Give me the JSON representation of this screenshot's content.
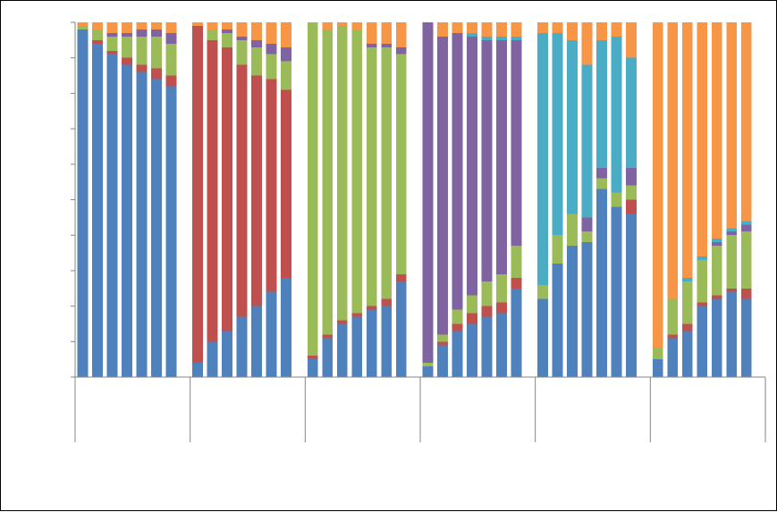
{
  "chart_data": {
    "type": "bar",
    "stacked": true,
    "normalized": true,
    "ylim": [
      0,
      1
    ],
    "grid": false,
    "gridlines": 10,
    "groups": 6,
    "bars_per_group": 7,
    "series_colors": [
      "#4F81BD",
      "#C0504D",
      "#9BBB59",
      "#8064A2",
      "#4BACC6",
      "#F79646"
    ],
    "series": [
      {
        "values": [
          0.98,
          0.94,
          0.91,
          0.88,
          0.86,
          0.84,
          0.82,
          0.04,
          0.1,
          0.13,
          0.17,
          0.2,
          0.24,
          0.28,
          0.05,
          0.11,
          0.15,
          0.17,
          0.19,
          0.2,
          0.27,
          0.03,
          0.09,
          0.13,
          0.15,
          0.17,
          0.18,
          0.25,
          0.22,
          0.32,
          0.37,
          0.38,
          0.53,
          0.48,
          0.46,
          0.05,
          0.11,
          0.13,
          0.2,
          0.22,
          0.24,
          0.22
        ]
      },
      {
        "values": [
          0.0,
          0.01,
          0.01,
          0.02,
          0.02,
          0.03,
          0.03,
          0.95,
          0.85,
          0.8,
          0.71,
          0.65,
          0.6,
          0.53,
          0.01,
          0.01,
          0.01,
          0.01,
          0.01,
          0.02,
          0.02,
          0.0,
          0.01,
          0.02,
          0.03,
          0.03,
          0.03,
          0.03,
          0.0,
          0.0,
          0.0,
          0.0,
          0.0,
          0.0,
          0.04,
          0.0,
          0.01,
          0.02,
          0.01,
          0.01,
          0.01,
          0.03
        ]
      },
      {
        "values": [
          0.01,
          0.03,
          0.04,
          0.06,
          0.08,
          0.09,
          0.09,
          0.0,
          0.03,
          0.04,
          0.07,
          0.08,
          0.07,
          0.08,
          0.94,
          0.86,
          0.83,
          0.8,
          0.73,
          0.71,
          0.62,
          0.01,
          0.02,
          0.04,
          0.05,
          0.07,
          0.08,
          0.09,
          0.04,
          0.08,
          0.09,
          0.03,
          0.03,
          0.04,
          0.04,
          0.03,
          0.1,
          0.12,
          0.12,
          0.14,
          0.15,
          0.16
        ]
      },
      {
        "values": [
          0.0,
          0.0,
          0.01,
          0.01,
          0.02,
          0.02,
          0.03,
          0.0,
          0.0,
          0.01,
          0.01,
          0.02,
          0.03,
          0.04,
          0.0,
          0.0,
          0.0,
          0.0,
          0.01,
          0.01,
          0.02,
          0.96,
          0.84,
          0.78,
          0.73,
          0.68,
          0.66,
          0.58,
          0.0,
          0.0,
          0.0,
          0.04,
          0.03,
          0.0,
          0.05,
          0.0,
          0.0,
          0.0,
          0.0,
          0.01,
          0.01,
          0.02
        ]
      },
      {
        "values": [
          0.0,
          0.0,
          0.0,
          0.0,
          0.0,
          0.0,
          0.0,
          0.0,
          0.0,
          0.0,
          0.0,
          0.0,
          0.0,
          0.0,
          0.0,
          0.0,
          0.0,
          0.0,
          0.0,
          0.0,
          0.0,
          0.0,
          0.0,
          0.0,
          0.01,
          0.01,
          0.01,
          0.01,
          0.71,
          0.57,
          0.49,
          0.43,
          0.36,
          0.44,
          0.31,
          0.0,
          0.0,
          0.01,
          0.01,
          0.01,
          0.01,
          0.01
        ]
      },
      {
        "values": [
          0.01,
          0.02,
          0.03,
          0.03,
          0.02,
          0.02,
          0.03,
          0.01,
          0.02,
          0.02,
          0.04,
          0.05,
          0.06,
          0.07,
          0.0,
          0.02,
          0.01,
          0.02,
          0.06,
          0.06,
          0.07,
          0.0,
          0.04,
          0.03,
          0.03,
          0.04,
          0.04,
          0.04,
          0.03,
          0.03,
          0.05,
          0.12,
          0.05,
          0.04,
          0.1,
          0.92,
          0.78,
          0.72,
          0.66,
          0.61,
          0.58,
          0.56
        ]
      }
    ]
  }
}
